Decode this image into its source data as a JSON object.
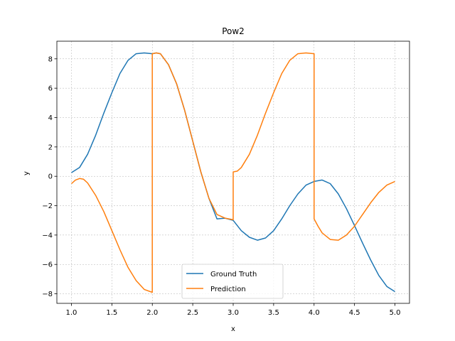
{
  "chart_data": {
    "type": "line",
    "title": "Pow2",
    "xlabel": "x",
    "ylabel": "y",
    "xlim": [
      0.82,
      5.18
    ],
    "ylim": [
      -8.65,
      9.2
    ],
    "xticks": [
      1.0,
      1.5,
      2.0,
      2.5,
      3.0,
      3.5,
      4.0,
      4.5,
      5.0
    ],
    "xtick_labels": [
      "1.0",
      "1.5",
      "2.0",
      "2.5",
      "3.0",
      "3.5",
      "4.0",
      "4.5",
      "5.0"
    ],
    "yticks": [
      -8,
      -6,
      -4,
      -2,
      0,
      2,
      4,
      6,
      8
    ],
    "ytick_labels": [
      "−8",
      "−6",
      "−4",
      "−2",
      "0",
      "2",
      "4",
      "6",
      "8"
    ],
    "grid": true,
    "legend_position": "bottom-center",
    "series": [
      {
        "name": "Ground Truth",
        "color": "#1f77b4",
        "x": [
          1.0,
          1.1,
          1.2,
          1.3,
          1.4,
          1.5,
          1.6,
          1.7,
          1.8,
          1.9,
          2.0,
          2.05,
          2.1,
          2.2,
          2.3,
          2.4,
          2.5,
          2.6,
          2.7,
          2.8,
          2.9,
          3.0,
          3.1,
          3.2,
          3.3,
          3.4,
          3.5,
          3.6,
          3.7,
          3.8,
          3.9,
          4.0,
          4.1,
          4.2,
          4.3,
          4.4,
          4.5,
          4.6,
          4.7,
          4.8,
          4.9,
          5.0
        ],
        "y": [
          0.25,
          0.6,
          1.5,
          2.8,
          4.3,
          5.7,
          7.0,
          7.9,
          8.35,
          8.4,
          8.35,
          8.4,
          8.35,
          7.6,
          6.3,
          4.5,
          2.4,
          0.3,
          -1.5,
          -2.9,
          -2.85,
          -3.0,
          -3.7,
          -4.15,
          -4.35,
          -4.2,
          -3.7,
          -2.9,
          -2.0,
          -1.2,
          -0.6,
          -0.35,
          -0.25,
          -0.5,
          -1.2,
          -2.2,
          -3.35,
          -4.55,
          -5.7,
          -6.75,
          -7.5,
          -7.85
        ]
      },
      {
        "name": "Prediction",
        "color": "#ff7f0e",
        "x": [
          1.0,
          1.05,
          1.1,
          1.15,
          1.2,
          1.3,
          1.4,
          1.5,
          1.6,
          1.7,
          1.8,
          1.9,
          2.0,
          2.0,
          2.05,
          2.1,
          2.2,
          2.3,
          2.4,
          2.5,
          2.6,
          2.7,
          2.8,
          2.9,
          3.0,
          3.0,
          3.05,
          3.1,
          3.2,
          3.3,
          3.4,
          3.5,
          3.6,
          3.7,
          3.8,
          3.9,
          4.0,
          4.0,
          4.05,
          4.1,
          4.2,
          4.3,
          4.4,
          4.5,
          4.6,
          4.7,
          4.8,
          4.9,
          5.0
        ],
        "y": [
          -0.5,
          -0.25,
          -0.15,
          -0.2,
          -0.45,
          -1.3,
          -2.4,
          -3.7,
          -5.0,
          -6.2,
          -7.1,
          -7.7,
          -7.9,
          8.35,
          8.4,
          8.35,
          7.6,
          6.3,
          4.5,
          2.4,
          0.3,
          -1.5,
          -2.6,
          -2.85,
          -2.95,
          0.3,
          0.35,
          0.6,
          1.5,
          2.8,
          4.3,
          5.7,
          7.0,
          7.9,
          8.35,
          8.4,
          8.35,
          -2.9,
          -3.4,
          -3.85,
          -4.3,
          -4.35,
          -4.0,
          -3.4,
          -2.6,
          -1.8,
          -1.1,
          -0.6,
          -0.35
        ]
      }
    ]
  }
}
